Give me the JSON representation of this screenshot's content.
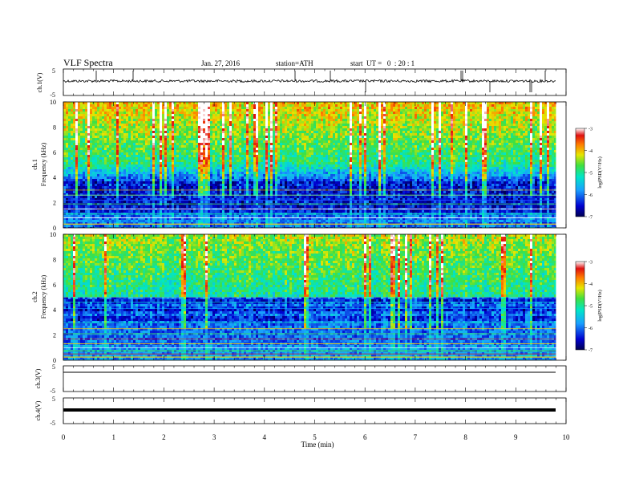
{
  "header": {
    "title": "VLF Spectra",
    "date": "Jan. 27, 2016",
    "station": "station=ATH",
    "start": "start  UT =   0  : 20 : 1"
  },
  "chart_data": [
    {
      "type": "line",
      "panel": "ch1-waveform",
      "ylabel": "ch.1(V)",
      "ylim": [
        -5,
        5
      ],
      "yticks": [
        "5",
        "-5"
      ]
    },
    {
      "type": "heatmap",
      "panel": "ch1-spectrogram",
      "ylabel_channel": "ch.1",
      "ylabel": "Frequency (kHz)",
      "ylim": [
        0,
        10
      ],
      "yticks": [
        "0",
        "2",
        "4",
        "6",
        "8",
        "10"
      ],
      "colorbar": {
        "label": "log(PSD(V²/Hz)",
        "range": [
          -7,
          -3
        ],
        "ticks": [
          "-3",
          "-4",
          "-5",
          "-6",
          "-7"
        ]
      }
    },
    {
      "type": "heatmap",
      "panel": "ch2-spectrogram",
      "ylabel_channel": "ch.2",
      "ylabel": "Frequency (kHz)",
      "ylim": [
        0,
        10
      ],
      "yticks": [
        "0",
        "2",
        "4",
        "6",
        "8",
        "10"
      ],
      "colorbar": {
        "label": "log(PSD(V²/Hz)",
        "range": [
          -7,
          -3
        ],
        "ticks": [
          "-3",
          "-4",
          "-5",
          "-6",
          "-7"
        ]
      }
    },
    {
      "type": "line",
      "panel": "ch3-waveform",
      "ylabel": "ch.3(V)",
      "ylim": [
        -5,
        5
      ],
      "yticks": [
        "5",
        "-5"
      ]
    },
    {
      "type": "line",
      "panel": "ch4-waveform",
      "ylabel": "ch.4(V)",
      "ylim": [
        -5,
        5
      ],
      "yticks": [
        "5",
        "-5"
      ]
    }
  ],
  "xaxis": {
    "label": "Time (min)",
    "range": [
      0,
      10
    ],
    "ticks": [
      "0",
      "1",
      "2",
      "3",
      "4",
      "5",
      "6",
      "7",
      "8",
      "9",
      "10"
    ],
    "data_end": 9.8
  }
}
